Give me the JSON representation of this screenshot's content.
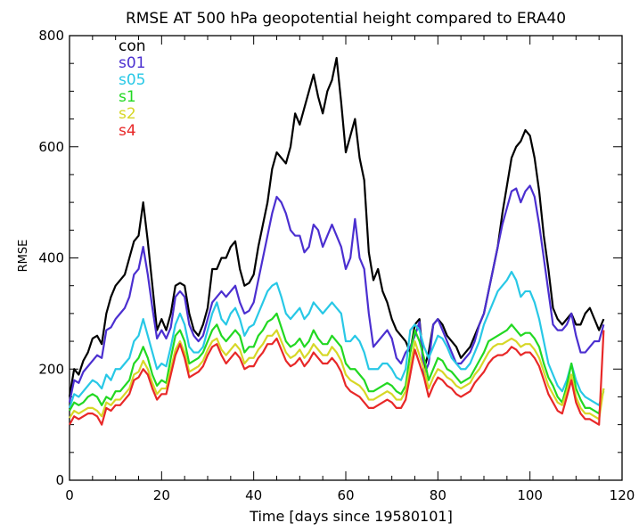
{
  "chart_data": {
    "type": "line",
    "title": "RMSE AT 500 hPa geopotential height compared to ERA40",
    "xlabel": "Time [days since 19580101]",
    "ylabel": "RMSE",
    "xlim": [
      0,
      120
    ],
    "ylim": [
      0,
      800
    ],
    "xticks": [
      0,
      20,
      40,
      60,
      80,
      100,
      120
    ],
    "yticks": [
      0,
      200,
      400,
      600,
      800
    ],
    "grid": false,
    "legend_placement": "top-left",
    "x": [
      0,
      1,
      2,
      3,
      4,
      5,
      6,
      7,
      8,
      9,
      10,
      11,
      12,
      13,
      14,
      15,
      16,
      17,
      18,
      19,
      20,
      21,
      22,
      23,
      24,
      25,
      26,
      27,
      28,
      29,
      30,
      31,
      32,
      33,
      34,
      35,
      36,
      37,
      38,
      39,
      40,
      41,
      42,
      43,
      44,
      45,
      46,
      47,
      48,
      49,
      50,
      51,
      52,
      53,
      54,
      55,
      56,
      57,
      58,
      59,
      60,
      61,
      62,
      63,
      64,
      65,
      66,
      67,
      68,
      69,
      70,
      71,
      72,
      73,
      74,
      75,
      76,
      77,
      78,
      79,
      80,
      81,
      82,
      83,
      84,
      85,
      86,
      87,
      88,
      89,
      90,
      91,
      92,
      93,
      94,
      95,
      96,
      97,
      98,
      99,
      100,
      101,
      102,
      103,
      104,
      105,
      106,
      107,
      108,
      109,
      110,
      111,
      112,
      113,
      114,
      115,
      116
    ],
    "series": [
      {
        "name": "con",
        "color": "#000000",
        "values": [
          150,
          200,
          190,
          215,
          230,
          255,
          260,
          245,
          300,
          330,
          350,
          360,
          370,
          400,
          430,
          440,
          500,
          430,
          350,
          270,
          290,
          270,
          300,
          350,
          355,
          350,
          300,
          270,
          260,
          280,
          310,
          380,
          380,
          400,
          400,
          420,
          430,
          380,
          350,
          355,
          370,
          420,
          460,
          500,
          560,
          590,
          580,
          570,
          600,
          660,
          640,
          670,
          700,
          730,
          690,
          660,
          700,
          720,
          760,
          680,
          590,
          620,
          650,
          580,
          540,
          410,
          360,
          380,
          340,
          320,
          290,
          270,
          260,
          250,
          230,
          280,
          290,
          200,
          230,
          280,
          290,
          280,
          260,
          250,
          240,
          220,
          230,
          240,
          260,
          280,
          300,
          340,
          380,
          420,
          480,
          530,
          580,
          600,
          610,
          630,
          620,
          580,
          520,
          440,
          380,
          310,
          290,
          280,
          290,
          300,
          280,
          280,
          300,
          310,
          290,
          270,
          290
        ]
      },
      {
        "name": "s01",
        "color": "#4b2fd0",
        "values": [
          140,
          180,
          175,
          195,
          205,
          215,
          225,
          220,
          270,
          275,
          290,
          300,
          310,
          330,
          370,
          380,
          420,
          370,
          310,
          255,
          270,
          255,
          275,
          330,
          340,
          330,
          280,
          260,
          250,
          260,
          290,
          320,
          330,
          340,
          330,
          340,
          350,
          320,
          300,
          305,
          320,
          360,
          400,
          440,
          480,
          510,
          500,
          480,
          450,
          440,
          440,
          410,
          420,
          460,
          450,
          420,
          440,
          460,
          440,
          420,
          380,
          400,
          470,
          400,
          380,
          300,
          240,
          250,
          260,
          270,
          255,
          220,
          210,
          230,
          240,
          260,
          285,
          190,
          210,
          280,
          290,
          270,
          250,
          230,
          210,
          210,
          220,
          230,
          250,
          280,
          300,
          340,
          380,
          420,
          460,
          490,
          520,
          525,
          500,
          520,
          530,
          510,
          460,
          400,
          340,
          280,
          270,
          270,
          280,
          300,
          260,
          230,
          230,
          240,
          250,
          250,
          280
        ]
      },
      {
        "name": "s05",
        "color": "#28c8e6",
        "values": [
          130,
          155,
          150,
          160,
          170,
          180,
          175,
          165,
          190,
          180,
          200,
          200,
          210,
          220,
          250,
          260,
          290,
          260,
          230,
          200,
          210,
          205,
          240,
          280,
          300,
          280,
          240,
          230,
          230,
          240,
          270,
          300,
          320,
          290,
          280,
          300,
          310,
          290,
          260,
          275,
          280,
          300,
          320,
          340,
          350,
          355,
          330,
          300,
          290,
          300,
          310,
          290,
          300,
          320,
          310,
          300,
          310,
          320,
          310,
          300,
          250,
          250,
          260,
          250,
          230,
          200,
          200,
          200,
          210,
          210,
          200,
          185,
          180,
          200,
          270,
          280,
          270,
          240,
          220,
          240,
          260,
          255,
          240,
          220,
          210,
          200,
          200,
          210,
          230,
          250,
          280,
          300,
          320,
          340,
          350,
          360,
          375,
          360,
          330,
          340,
          340,
          320,
          290,
          250,
          210,
          190,
          170,
          160,
          180,
          210,
          180,
          160,
          150,
          145,
          140,
          135,
          160
        ]
      },
      {
        "name": "s1",
        "color": "#22d822",
        "values": [
          125,
          140,
          135,
          140,
          150,
          155,
          150,
          135,
          150,
          145,
          160,
          160,
          170,
          180,
          210,
          220,
          240,
          220,
          190,
          170,
          180,
          175,
          220,
          260,
          270,
          250,
          210,
          215,
          220,
          230,
          250,
          270,
          280,
          260,
          250,
          260,
          270,
          260,
          230,
          240,
          240,
          260,
          270,
          285,
          290,
          300,
          275,
          250,
          240,
          245,
          255,
          240,
          250,
          270,
          255,
          245,
          245,
          260,
          250,
          240,
          210,
          200,
          200,
          190,
          180,
          160,
          160,
          165,
          170,
          175,
          170,
          160,
          155,
          170,
          230,
          270,
          250,
          220,
          180,
          200,
          220,
          215,
          200,
          195,
          185,
          175,
          180,
          185,
          200,
          215,
          230,
          250,
          255,
          260,
          265,
          270,
          280,
          270,
          260,
          265,
          265,
          255,
          240,
          210,
          185,
          170,
          150,
          140,
          170,
          210,
          165,
          145,
          130,
          130,
          125,
          120,
          165
        ]
      },
      {
        "name": "s2",
        "color": "#d7d727",
        "values": [
          112,
          125,
          120,
          125,
          130,
          130,
          125,
          115,
          140,
          135,
          145,
          145,
          155,
          165,
          190,
          195,
          215,
          200,
          175,
          155,
          165,
          165,
          200,
          235,
          250,
          230,
          195,
          200,
          205,
          215,
          235,
          250,
          255,
          235,
          225,
          235,
          245,
          235,
          210,
          220,
          220,
          235,
          245,
          260,
          260,
          270,
          250,
          230,
          220,
          225,
          235,
          220,
          230,
          245,
          235,
          225,
          225,
          240,
          230,
          215,
          190,
          180,
          175,
          170,
          160,
          145,
          145,
          150,
          155,
          160,
          155,
          145,
          145,
          160,
          205,
          250,
          225,
          200,
          165,
          185,
          200,
          195,
          185,
          180,
          170,
          165,
          170,
          175,
          190,
          200,
          215,
          230,
          240,
          245,
          245,
          250,
          255,
          250,
          240,
          245,
          245,
          235,
          220,
          195,
          170,
          155,
          140,
          135,
          160,
          190,
          150,
          130,
          120,
          120,
          115,
          110,
          165
        ]
      },
      {
        "name": "s4",
        "color": "#e82828",
        "values": [
          100,
          115,
          110,
          115,
          120,
          120,
          115,
          100,
          130,
          125,
          135,
          135,
          145,
          155,
          180,
          185,
          200,
          190,
          165,
          145,
          155,
          155,
          190,
          225,
          245,
          220,
          185,
          190,
          195,
          205,
          225,
          240,
          245,
          225,
          210,
          220,
          230,
          220,
          200,
          205,
          205,
          220,
          230,
          245,
          245,
          255,
          235,
          215,
          205,
          210,
          220,
          205,
          215,
          230,
          220,
          210,
          210,
          220,
          210,
          195,
          170,
          160,
          155,
          150,
          140,
          130,
          130,
          135,
          140,
          145,
          140,
          130,
          130,
          145,
          190,
          235,
          210,
          185,
          150,
          170,
          185,
          180,
          170,
          165,
          155,
          150,
          155,
          160,
          175,
          185,
          195,
          210,
          220,
          225,
          225,
          230,
          240,
          235,
          225,
          230,
          230,
          220,
          205,
          180,
          155,
          140,
          125,
          120,
          150,
          180,
          140,
          120,
          110,
          110,
          105,
          100,
          270
        ]
      }
    ]
  }
}
